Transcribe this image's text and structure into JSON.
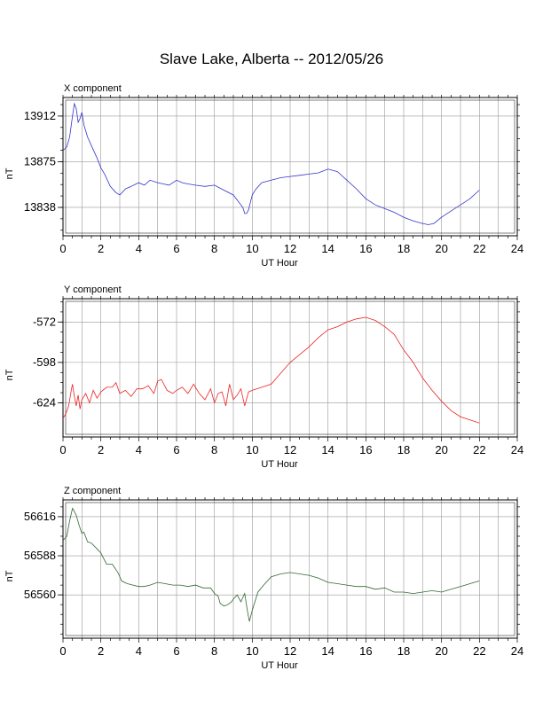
{
  "title": "Slave Lake, Alberta -- 2012/05/26",
  "chart_data": [
    {
      "type": "line",
      "panel_label": "X component",
      "xlabel": "UT Hour",
      "ylabel": "nT",
      "xlim": [
        0,
        24
      ],
      "ylim": [
        13815,
        13927
      ],
      "x_ticks": [
        0,
        2,
        4,
        6,
        8,
        10,
        12,
        14,
        16,
        18,
        20,
        22,
        24
      ],
      "y_ticks": [
        13838,
        13875,
        13912
      ],
      "grid": true,
      "color": "#3333cc",
      "series": [
        {
          "x": [
            0,
            0.2,
            0.35,
            0.5,
            0.6,
            0.7,
            0.8,
            0.9,
            1.0,
            1.1,
            1.3,
            1.5,
            1.8,
            2.0,
            2.2,
            2.5,
            2.8,
            3.0,
            3.3,
            3.6,
            4.0,
            4.3,
            4.6,
            5.0,
            5.3,
            5.6,
            6.0,
            6.3,
            6.6,
            7.0,
            7.5,
            8.0,
            8.5,
            9.0,
            9.3,
            9.5,
            9.6,
            9.7,
            9.8,
            10.0,
            10.2,
            10.5,
            11.0,
            11.5,
            12.0,
            12.5,
            13.0,
            13.5,
            14.0,
            14.5,
            15.0,
            15.5,
            16.0,
            16.5,
            17.0,
            17.5,
            18.0,
            18.5,
            19.0,
            19.3,
            19.6,
            20.0,
            20.5,
            21.0,
            21.5,
            22.0
          ],
          "values": [
            13884,
            13887,
            13895,
            13912,
            13922,
            13918,
            13907,
            13910,
            13915,
            13905,
            13895,
            13888,
            13878,
            13870,
            13865,
            13855,
            13850,
            13848,
            13853,
            13855,
            13858,
            13856,
            13860,
            13858,
            13857,
            13856,
            13860,
            13858,
            13857,
            13856,
            13855,
            13856,
            13852,
            13848,
            13842,
            13838,
            13833,
            13833,
            13836,
            13848,
            13853,
            13858,
            13860,
            13862,
            13863,
            13864,
            13865,
            13866,
            13869,
            13867,
            13860,
            13853,
            13845,
            13840,
            13837,
            13834,
            13830,
            13827,
            13825,
            13824,
            13825,
            13830,
            13835,
            13840,
            13845,
            13852
          ]
        }
      ]
    },
    {
      "type": "line",
      "panel_label": "Y component",
      "xlabel": "UT Hour",
      "ylabel": "nT",
      "xlim": [
        0,
        24
      ],
      "ylim": [
        -646,
        -557
      ],
      "x_ticks": [
        0,
        2,
        4,
        6,
        8,
        10,
        12,
        14,
        16,
        18,
        20,
        22,
        24
      ],
      "y_ticks": [
        -572,
        -598,
        -624
      ],
      "grid": true,
      "color": "#ee2222",
      "series": [
        {
          "x": [
            0,
            0.15,
            0.3,
            0.45,
            0.5,
            0.6,
            0.7,
            0.8,
            0.9,
            1.0,
            1.2,
            1.4,
            1.6,
            1.8,
            2.0,
            2.3,
            2.6,
            2.8,
            3.0,
            3.3,
            3.6,
            3.9,
            4.2,
            4.5,
            4.8,
            5.0,
            5.2,
            5.5,
            5.8,
            6.0,
            6.3,
            6.6,
            6.9,
            7.2,
            7.5,
            7.8,
            8.0,
            8.2,
            8.4,
            8.6,
            8.8,
            9.0,
            9.2,
            9.4,
            9.6,
            9.8,
            10.0,
            10.5,
            11.0,
            11.5,
            12.0,
            12.5,
            13.0,
            13.5,
            14.0,
            14.5,
            15.0,
            15.5,
            16.0,
            16.5,
            17.0,
            17.5,
            18.0,
            18.5,
            19.0,
            19.5,
            20.0,
            20.5,
            21.0,
            21.5,
            22.0
          ],
          "values": [
            -634,
            -631,
            -626,
            -615,
            -612,
            -620,
            -626,
            -619,
            -628,
            -622,
            -618,
            -624,
            -616,
            -621,
            -617,
            -614,
            -614,
            -611,
            -618,
            -616,
            -620,
            -615,
            -615,
            -613,
            -618,
            -610,
            -609,
            -616,
            -618,
            -616,
            -614,
            -618,
            -612,
            -618,
            -622,
            -615,
            -624,
            -618,
            -617,
            -626,
            -612,
            -622,
            -619,
            -615,
            -626,
            -617,
            -616,
            -614,
            -612,
            -605,
            -598,
            -593,
            -588,
            -582,
            -577,
            -575,
            -572,
            -570,
            -569,
            -571,
            -575,
            -580,
            -590,
            -598,
            -608,
            -616,
            -623,
            -629,
            -633,
            -635,
            -637
          ]
        }
      ]
    },
    {
      "type": "line",
      "panel_label": "Z component",
      "xlabel": "UT Hour",
      "ylabel": "nT",
      "xlim": [
        0,
        24
      ],
      "ylim": [
        -9999,
        0
      ],
      "x_ticks": [
        0,
        2,
        4,
        6,
        8,
        10,
        12,
        14,
        16,
        18,
        20,
        22,
        24
      ],
      "y_ticks": [
        56560,
        56588,
        56616
      ],
      "y_range": [
        56529,
        56628
      ],
      "grid": true,
      "color": "#336633",
      "series": [
        {
          "x": [
            0,
            0.2,
            0.35,
            0.5,
            0.55,
            0.7,
            0.85,
            1.0,
            1.1,
            1.3,
            1.5,
            1.8,
            2.0,
            2.3,
            2.6,
            2.9,
            3.1,
            3.4,
            3.7,
            4.0,
            4.3,
            4.6,
            5.0,
            5.4,
            5.8,
            6.2,
            6.6,
            7.0,
            7.4,
            7.8,
            8.0,
            8.2,
            8.3,
            8.5,
            8.7,
            8.9,
            9.0,
            9.2,
            9.4,
            9.6,
            9.75,
            9.85,
            10.0,
            10.3,
            10.6,
            11.0,
            11.5,
            12.0,
            12.5,
            13.0,
            13.5,
            14.0,
            14.5,
            15.0,
            15.5,
            16.0,
            16.5,
            17.0,
            17.5,
            18.0,
            18.5,
            19.0,
            19.5,
            20.0,
            20.5,
            21.0,
            21.5,
            22.0
          ],
          "values": [
            56599,
            56602,
            56613,
            56622,
            56621,
            56617,
            56610,
            56604,
            56605,
            56598,
            56597,
            56593,
            56590,
            56582,
            56582,
            56576,
            56570,
            56568,
            56567,
            56566,
            56566,
            56567,
            56569,
            56568,
            56567,
            56567,
            56566,
            56567,
            56565,
            56565,
            56561,
            56559,
            56554,
            56552,
            56553,
            56555,
            56557,
            56560,
            56555,
            56561,
            56548,
            56541,
            56549,
            56562,
            56567,
            56573,
            56575,
            56576,
            56575,
            56574,
            56572,
            56569,
            56568,
            56567,
            56566,
            56566,
            56564,
            56565,
            56562,
            56562,
            56561,
            56562,
            56563,
            56562,
            56564,
            56566,
            56568,
            56570
          ]
        }
      ]
    }
  ]
}
